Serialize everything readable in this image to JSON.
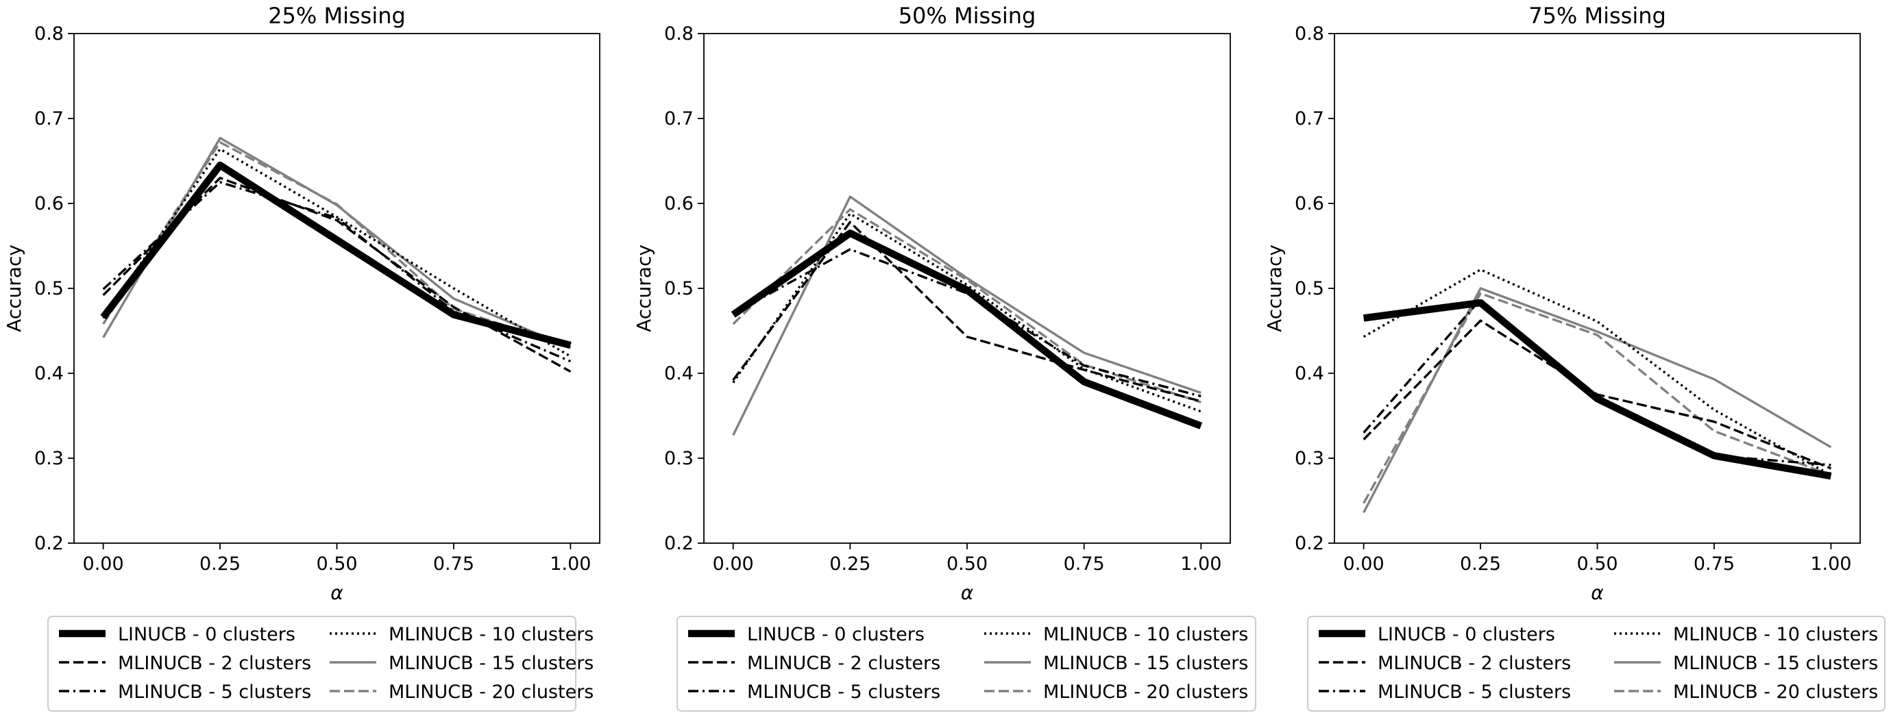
{
  "chart_data": [
    {
      "type": "line",
      "title": "25% Missing",
      "xlabel": "α",
      "ylabel": "Accuracy",
      "x": [
        0.0,
        0.25,
        0.5,
        0.75,
        1.0
      ],
      "xticks": [
        "0.00",
        "0.25",
        "0.50",
        "0.75",
        "1.00"
      ],
      "yticks": [
        "0.2",
        "0.3",
        "0.4",
        "0.5",
        "0.6",
        "0.7",
        "0.8"
      ],
      "xlim": [
        -0.0625,
        1.0625
      ],
      "ylim": [
        0.2,
        0.8
      ],
      "grid": false,
      "legend_position": "below",
      "series": [
        {
          "name": "MLINUCB - 2 clusters",
          "values": [
            0.492,
            0.63,
            0.58,
            0.478,
            0.402
          ]
        },
        {
          "name": "MLINUCB - 5 clusters",
          "values": [
            0.499,
            0.625,
            0.583,
            0.473,
            0.414
          ]
        },
        {
          "name": "MLINUCB - 10 clusters",
          "values": [
            0.465,
            0.664,
            0.584,
            0.5,
            0.42
          ]
        },
        {
          "name": "MLINUCB - 15 clusters",
          "values": [
            0.442,
            0.677,
            0.598,
            0.488,
            0.43
          ]
        },
        {
          "name": "MLINUCB - 20 clusters",
          "values": [
            0.458,
            0.672,
            0.599,
            0.476,
            0.431
          ]
        },
        {
          "name": "LINUCB - 0 clusters",
          "values": [
            0.466,
            0.645,
            0.557,
            0.469,
            0.433
          ]
        }
      ]
    },
    {
      "type": "line",
      "title": "50% Missing",
      "xlabel": "α",
      "ylabel": "Accuracy",
      "x": [
        0.0,
        0.25,
        0.5,
        0.75,
        1.0
      ],
      "xticks": [
        "0.00",
        "0.25",
        "0.50",
        "0.75",
        "1.00"
      ],
      "yticks": [
        "0.2",
        "0.3",
        "0.4",
        "0.5",
        "0.6",
        "0.7",
        "0.8"
      ],
      "xlim": [
        -0.0625,
        1.0625
      ],
      "ylim": [
        0.2,
        0.8
      ],
      "grid": false,
      "legend_position": "below",
      "series": [
        {
          "name": "MLINUCB - 2 clusters",
          "values": [
            0.392,
            0.578,
            0.443,
            0.404,
            0.367
          ]
        },
        {
          "name": "MLINUCB - 5 clusters",
          "values": [
            0.47,
            0.546,
            0.494,
            0.409,
            0.373
          ]
        },
        {
          "name": "MLINUCB - 10 clusters",
          "values": [
            0.389,
            0.588,
            0.504,
            0.405,
            0.355
          ]
        },
        {
          "name": "MLINUCB - 15 clusters",
          "values": [
            0.327,
            0.608,
            0.512,
            0.424,
            0.377
          ]
        },
        {
          "name": "MLINUCB - 20 clusters",
          "values": [
            0.458,
            0.593,
            0.51,
            0.41,
            0.366
          ]
        },
        {
          "name": "LINUCB - 0 clusters",
          "values": [
            0.469,
            0.565,
            0.498,
            0.39,
            0.338
          ]
        }
      ]
    },
    {
      "type": "line",
      "title": "75% Missing",
      "xlabel": "α",
      "ylabel": "Accuracy",
      "x": [
        0.0,
        0.25,
        0.5,
        0.75,
        1.0
      ],
      "xticks": [
        "0.00",
        "0.25",
        "0.50",
        "0.75",
        "1.00"
      ],
      "yticks": [
        "0.2",
        "0.3",
        "0.4",
        "0.5",
        "0.6",
        "0.7",
        "0.8"
      ],
      "xlim": [
        -0.0625,
        1.0625
      ],
      "ylim": [
        0.2,
        0.8
      ],
      "grid": false,
      "legend_position": "below",
      "series": [
        {
          "name": "MLINUCB - 2 clusters",
          "values": [
            0.322,
            0.462,
            0.375,
            0.343,
            0.288
          ]
        },
        {
          "name": "MLINUCB - 5 clusters",
          "values": [
            0.33,
            0.487,
            0.371,
            0.303,
            0.292
          ]
        },
        {
          "name": "MLINUCB - 10 clusters",
          "values": [
            0.443,
            0.522,
            0.461,
            0.357,
            0.28
          ]
        },
        {
          "name": "MLINUCB - 15 clusters",
          "values": [
            0.236,
            0.5,
            0.449,
            0.393,
            0.313
          ]
        },
        {
          "name": "MLINUCB - 20 clusters",
          "values": [
            0.247,
            0.494,
            0.445,
            0.332,
            0.28
          ]
        },
        {
          "name": "LINUCB - 0 clusters",
          "values": [
            0.465,
            0.483,
            0.37,
            0.303,
            0.279
          ]
        }
      ]
    }
  ],
  "legend": {
    "columns": [
      [
        "LINUCB - 0 clusters",
        "MLINUCB - 2 clusters",
        "MLINUCB - 5 clusters"
      ],
      [
        "MLINUCB - 10 clusters",
        "MLINUCB - 15 clusters",
        "MLINUCB - 20 clusters"
      ]
    ]
  },
  "series_styles": {
    "LINUCB - 0 clusters": {
      "color": "#000000",
      "dash": "solid",
      "weight": "heavy"
    },
    "MLINUCB - 2 clusters": {
      "color": "#000000",
      "dash": "dashed",
      "weight": "normal"
    },
    "MLINUCB - 5 clusters": {
      "color": "#000000",
      "dash": "dash-dot",
      "weight": "normal"
    },
    "MLINUCB - 10 clusters": {
      "color": "#000000",
      "dash": "dotted",
      "weight": "normal"
    },
    "MLINUCB - 15 clusters": {
      "color": "#808080",
      "dash": "solid",
      "weight": "normal"
    },
    "MLINUCB - 20 clusters": {
      "color": "#808080",
      "dash": "dashed",
      "weight": "normal"
    }
  }
}
